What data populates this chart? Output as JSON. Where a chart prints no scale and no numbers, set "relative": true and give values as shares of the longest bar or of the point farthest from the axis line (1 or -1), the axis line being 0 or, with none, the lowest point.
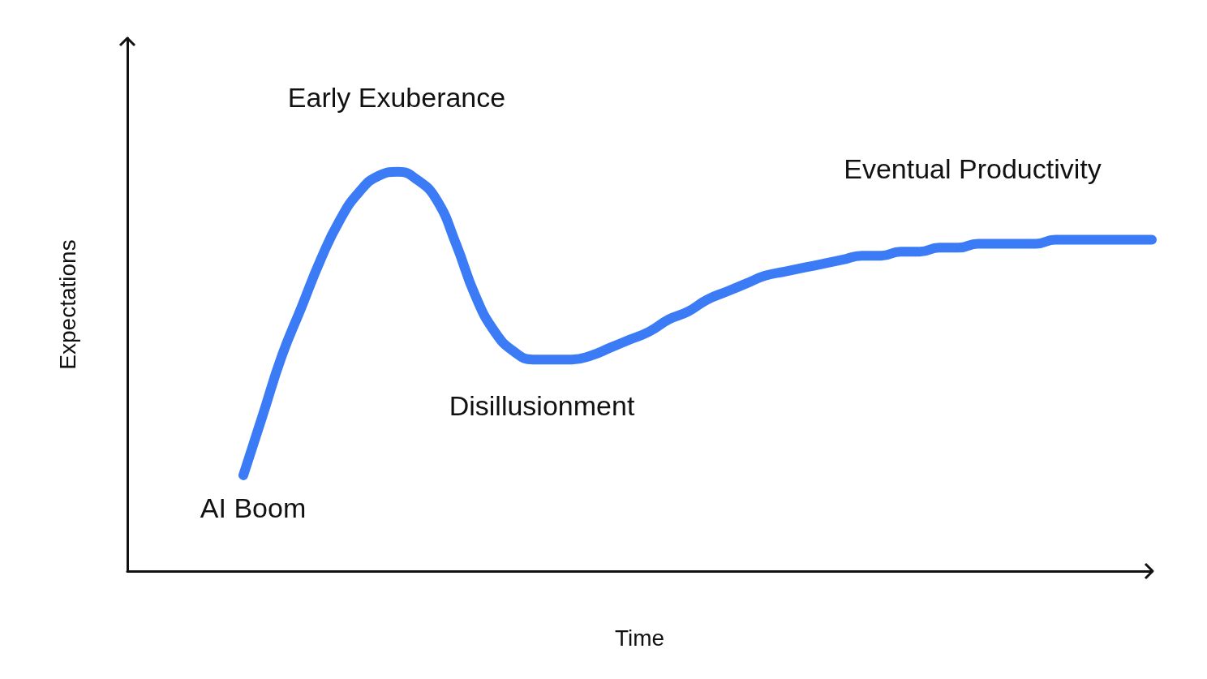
{
  "chart_data": {
    "type": "line",
    "relative": true,
    "xlabel": "Time",
    "ylabel": "Expectations",
    "color": "#3b7cf6",
    "grid": false,
    "categories": [
      null,
      null,
      null,
      null,
      null,
      null,
      null,
      null,
      null,
      null,
      null,
      null,
      null,
      null,
      null,
      null,
      null,
      null,
      null,
      null,
      null,
      null,
      null,
      null,
      null,
      null,
      null,
      null,
      null,
      null,
      null,
      null,
      null,
      null,
      null,
      null,
      null,
      null,
      null,
      null,
      null,
      null,
      null,
      null,
      null,
      null,
      null,
      null,
      null,
      null,
      null,
      null,
      null,
      null
    ],
    "values": [
      null,
      null,
      null,
      null,
      null,
      null,
      0.24,
      0.39,
      0.54,
      0.66,
      0.78,
      0.88,
      0.95,
      0.99,
      1,
      0.98,
      0.93,
      0.82,
      0.69,
      0.6,
      0.55,
      0.53,
      0.53,
      0.53,
      0.54,
      0.56,
      0.58,
      0.6,
      0.63,
      0.65,
      0.68,
      0.7,
      0.72,
      0.74,
      0.75,
      0.76,
      0.77,
      0.78,
      0.79,
      0.79,
      0.8,
      0.8,
      0.81,
      0.81,
      0.82,
      0.82,
      0.82,
      0.82,
      0.83,
      0.83,
      0.83,
      0.83,
      0.83,
      0.83
    ],
    "annotations": [
      "Early Exuberance",
      "Eventual Productivity",
      "Disillusionment",
      "AI Boom"
    ]
  }
}
